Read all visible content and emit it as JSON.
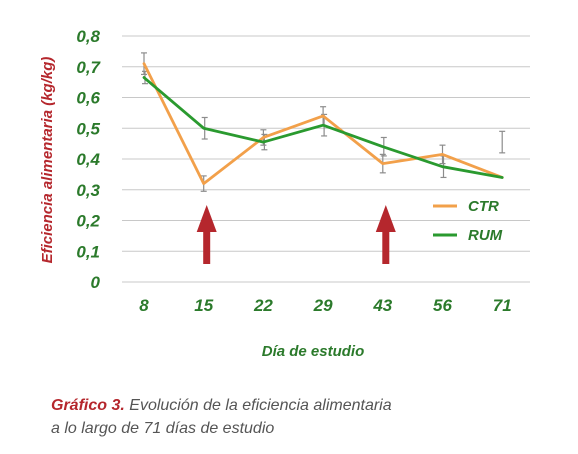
{
  "chart_data": {
    "type": "line",
    "title": "",
    "xlabel": "Día de estudio",
    "ylabel": "Eficiencia alimentaria (kg/kg)",
    "categories": [
      "8",
      "15",
      "22",
      "29",
      "43",
      "56",
      "71"
    ],
    "y_ticks": [
      "0",
      "0,1",
      "0,2",
      "0,3",
      "0,4",
      "0,5",
      "0,6",
      "0,7",
      "0,8"
    ],
    "ylim": [
      0,
      0.8
    ],
    "grid": "horizontal",
    "legend_position": "right",
    "series": [
      {
        "name": "CTR",
        "color": "#f2a04a",
        "values": [
          0.71,
          0.32,
          0.47,
          0.54,
          0.385,
          0.415,
          0.34
        ],
        "error": [
          0.035,
          0.025,
          0.025,
          0.03,
          0.03,
          0.03,
          0.0
        ]
      },
      {
        "name": "RUM",
        "color": "#2a9a2f",
        "values": [
          0.665,
          0.5,
          0.455,
          0.51,
          0.44,
          0.375,
          0.34
        ],
        "error": [
          0.02,
          0.035,
          0.025,
          0.035,
          0.03,
          0.035,
          0.0
        ]
      }
    ],
    "extra_error_bars": [
      {
        "category_index": 6,
        "value": 0.455,
        "error": 0.035
      }
    ],
    "annotations": [
      {
        "type": "arrow-up",
        "category": "15",
        "color": "#b5272d"
      },
      {
        "type": "arrow-up",
        "category": "43",
        "color": "#b5272d"
      }
    ]
  },
  "caption": {
    "label": "Gráfico 3.",
    "line1": "Evolución de la eficiencia alimentaria",
    "line2": "a lo largo de 71 días de estudio"
  },
  "colors": {
    "tick_text": "#2b7a2b",
    "ylabel": "#b5272d",
    "xlabel": "#2b7a2b",
    "gridline": "#c8c8c8",
    "error_bar": "#8c8c8c",
    "arrow": "#b5272d"
  }
}
